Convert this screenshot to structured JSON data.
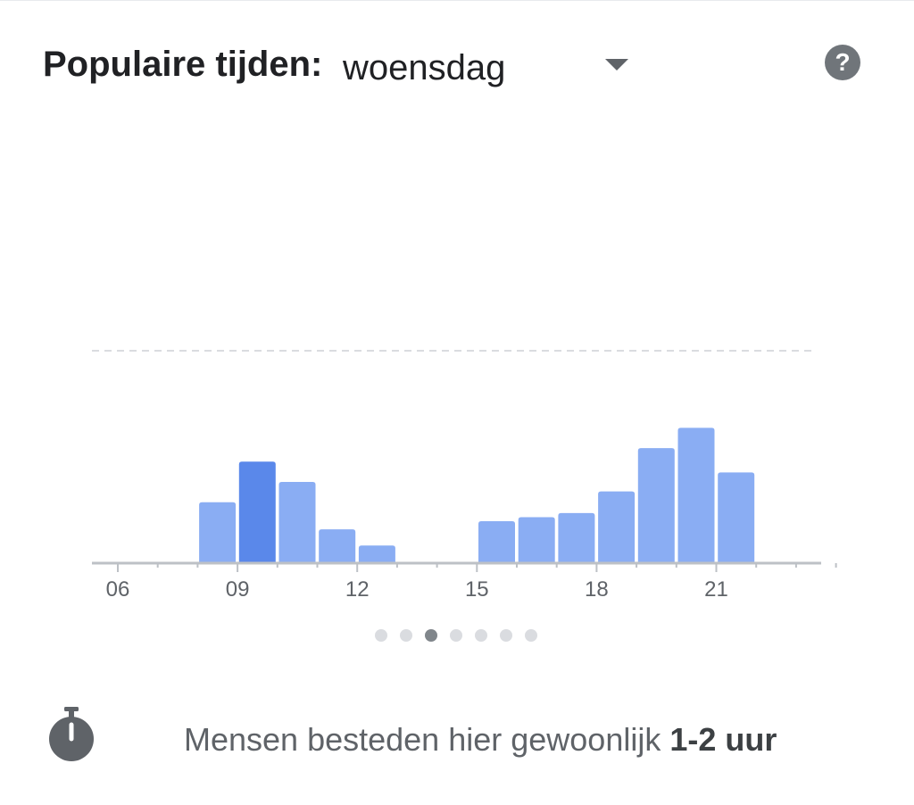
{
  "header": {
    "title": "Populaire tijden:",
    "selected_day": "woensdag",
    "dropdown_icon": "chevron-down-icon",
    "help_icon": "help-icon",
    "help_symbol": "?"
  },
  "chart_data": {
    "type": "bar",
    "title": "",
    "xlabel": "",
    "ylabel": "",
    "x": [
      6,
      7,
      8,
      9,
      10,
      11,
      12,
      13,
      14,
      15,
      16,
      17,
      18,
      19,
      20,
      21,
      22,
      23
    ],
    "values": [
      0,
      0,
      45,
      75,
      60,
      25,
      13,
      0,
      0,
      31,
      34,
      37,
      53,
      85,
      100,
      67,
      0,
      0
    ],
    "highlighted_x": 9,
    "tick_labels": [
      "06",
      "09",
      "12",
      "15",
      "18",
      "21"
    ],
    "tick_values": [
      6,
      9,
      12,
      15,
      18,
      21
    ],
    "ylim": [
      0,
      157
    ],
    "reference_line_value": 157,
    "grid": false,
    "colors": {
      "bar": "#8aadf3",
      "highlight": "#5a88ea",
      "axis": "#bdc1c6",
      "tick_text": "#5f6368",
      "reference": "#dadce0"
    }
  },
  "pagination": {
    "count": 7,
    "active_index": 2
  },
  "footer": {
    "icon": "timer-icon",
    "text": "Mensen besteden hier gewoonlijk",
    "bold": "1-2 uur"
  }
}
